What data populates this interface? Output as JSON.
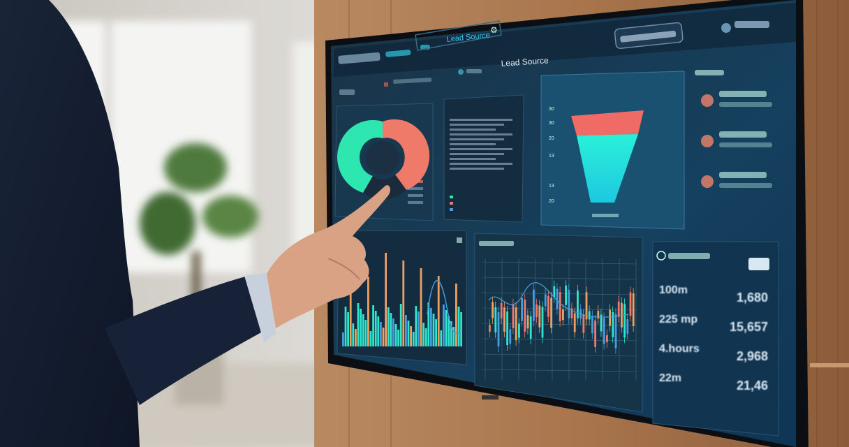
{
  "dashboard": {
    "header_tab": "Lead Source",
    "section_title": "Lead Source",
    "accent_colors": {
      "teal": "#2ee6d0",
      "coral": "#f07a6a",
      "orange": "#f0a060",
      "blue": "#4a9ae0",
      "screen_bg": "#14304a"
    },
    "stats_panel": {
      "rows": [
        {
          "label": "100m",
          "value": "1,680"
        },
        {
          "label": "225 mp",
          "value": "15,657"
        },
        {
          "label": "4.hours",
          "value": "2,968"
        },
        {
          "label": "22m",
          "value": "21,46"
        }
      ]
    }
  },
  "icons": [
    "settings-icon",
    "user-avatar-icon"
  ]
}
